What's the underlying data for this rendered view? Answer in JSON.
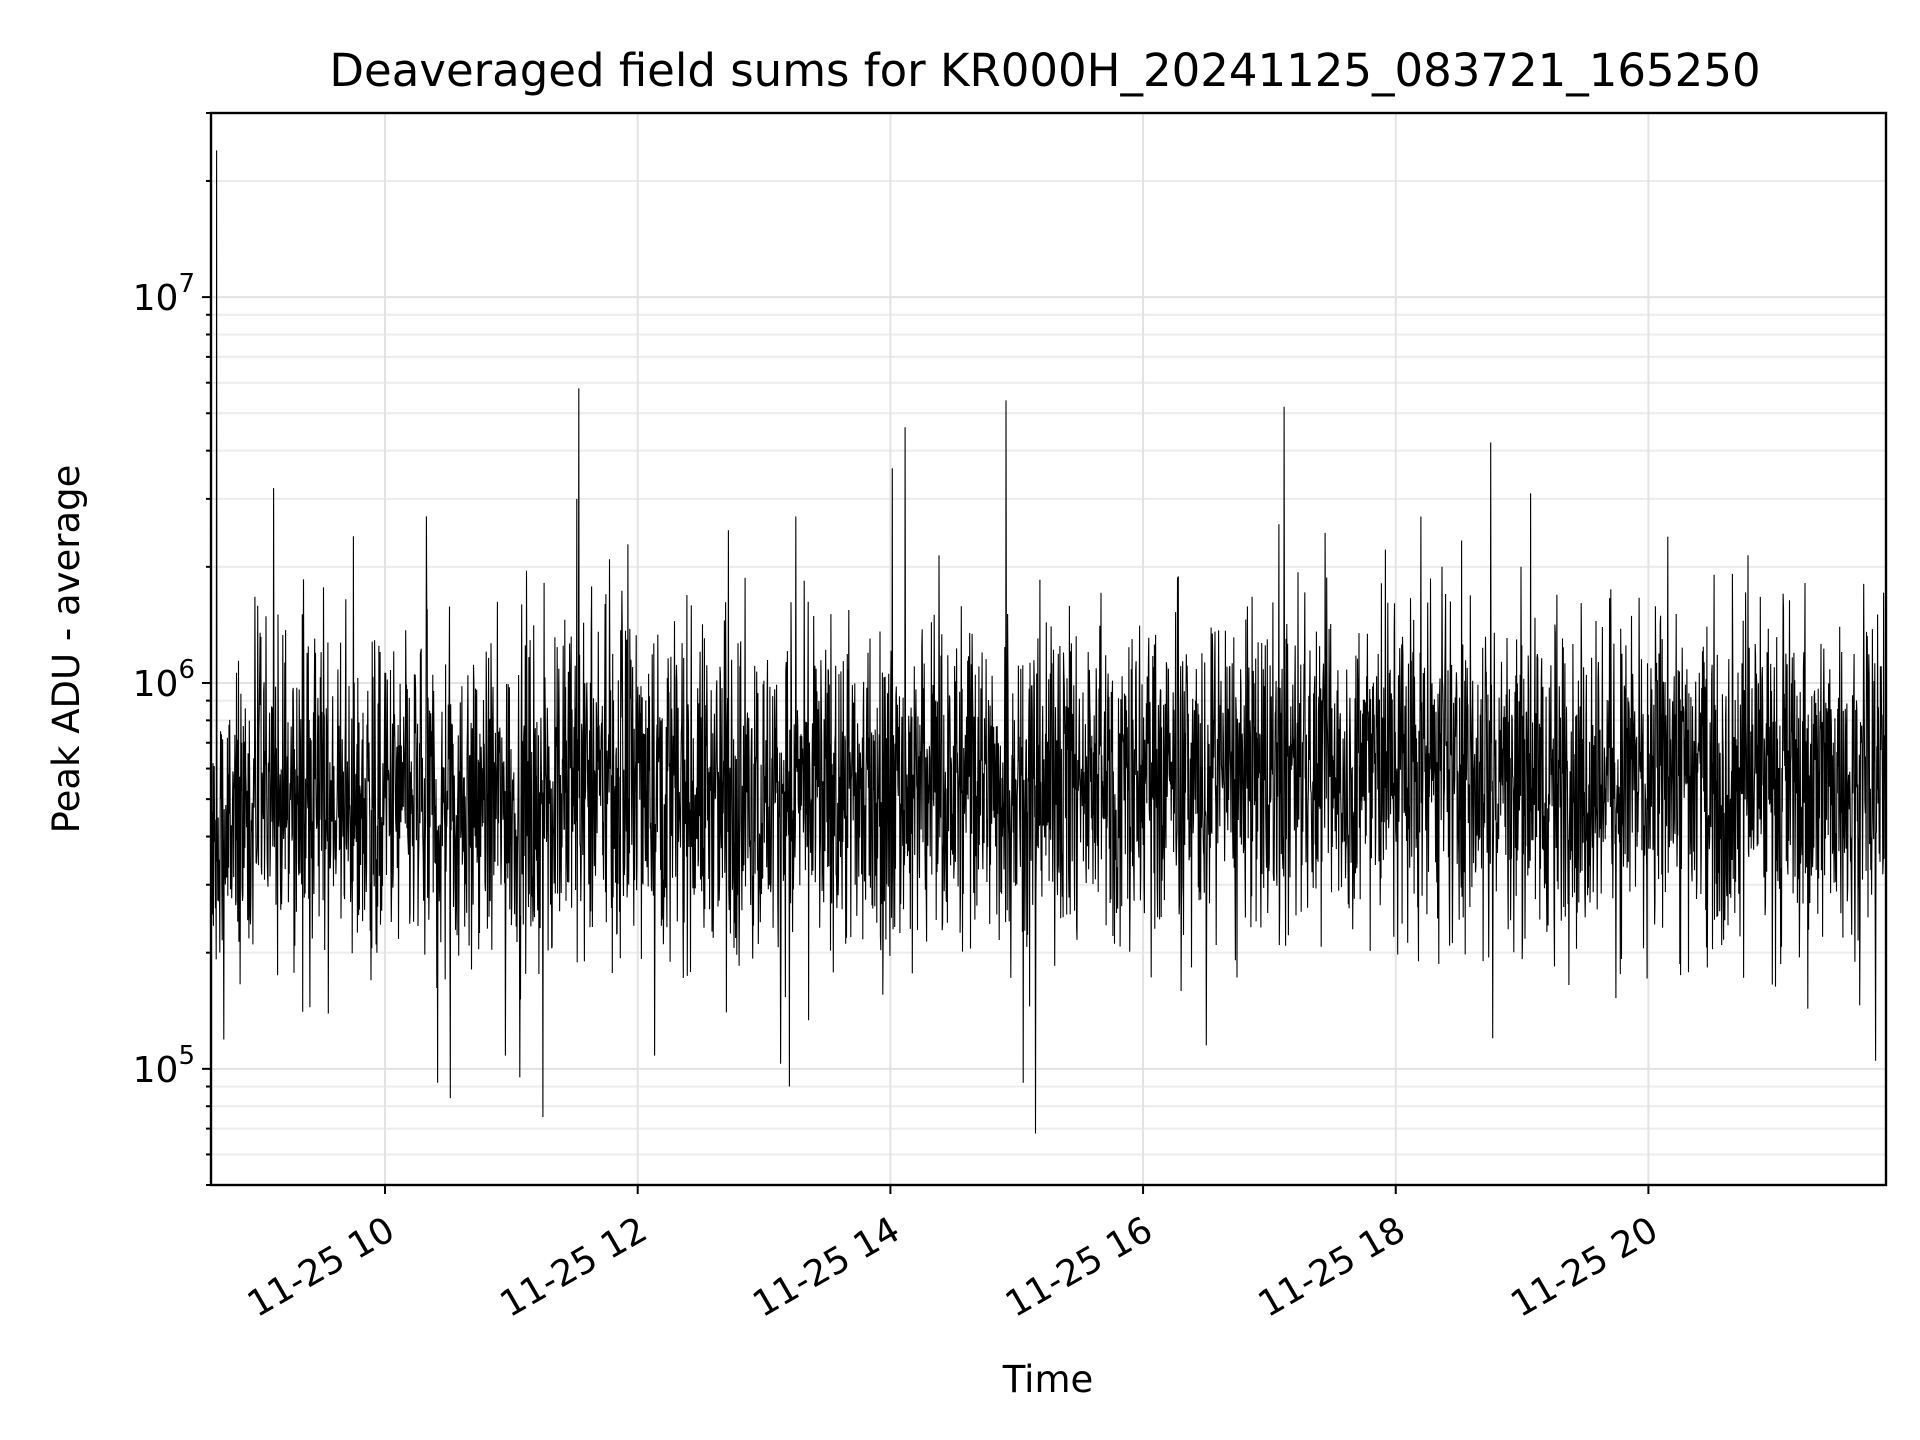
{
  "chart_data": {
    "type": "line",
    "title": "Deaveraged field sums for KR000H_20241125_083721_165250",
    "xlabel": "Time",
    "ylabel": "Peak ADU - average",
    "x_start": "2024-11-25 08:37:21",
    "x_end": "2024-11-25 21:52:50",
    "xlim": [
      "2024-11-25 08:37:21",
      "2024-11-25 21:52:50"
    ],
    "ylim": [
      50000,
      30000000
    ],
    "yscale": "log",
    "grid": true,
    "x_ticks": [
      {
        "time": "2024-11-25 10:00",
        "label": "11-25 10"
      },
      {
        "time": "2024-11-25 12:00",
        "label": "11-25 12"
      },
      {
        "time": "2024-11-25 14:00",
        "label": "11-25 14"
      },
      {
        "time": "2024-11-25 16:00",
        "label": "11-25 16"
      },
      {
        "time": "2024-11-25 18:00",
        "label": "11-25 18"
      },
      {
        "time": "2024-11-25 20:00",
        "label": "11-25 20"
      }
    ],
    "y_ticks": [
      {
        "value": 100000,
        "base": "10",
        "exp": "5"
      },
      {
        "value": 1000000,
        "base": "10",
        "exp": "6"
      },
      {
        "value": 10000000,
        "base": "10",
        "exp": "7"
      }
    ],
    "series": [
      {
        "color": "#000000",
        "baseline": [
          {
            "time": "2024-11-25 08:37",
            "value": 320000
          },
          {
            "time": "2024-11-25 09:00",
            "value": 500000
          },
          {
            "time": "2024-11-25 10:00",
            "value": 480000
          },
          {
            "time": "2024-11-25 11:00",
            "value": 490000
          },
          {
            "time": "2024-11-25 12:00",
            "value": 560000
          },
          {
            "time": "2024-11-25 13:00",
            "value": 500000
          },
          {
            "time": "2024-11-25 14:00",
            "value": 520000
          },
          {
            "time": "2024-11-25 15:00",
            "value": 560000
          },
          {
            "time": "2024-11-25 16:00",
            "value": 560000
          },
          {
            "time": "2024-11-25 17:00",
            "value": 560000
          },
          {
            "time": "2024-11-25 18:00",
            "value": 620000
          },
          {
            "time": "2024-11-25 19:00",
            "value": 560000
          },
          {
            "time": "2024-11-25 20:00",
            "value": 580000
          },
          {
            "time": "2024-11-25 21:00",
            "value": 580000
          },
          {
            "time": "2024-11-25 21:52",
            "value": 560000
          }
        ],
        "peaks": [
          {
            "time": "2024-11-25 08:40",
            "value": 24000000
          },
          {
            "time": "2024-11-25 09:07",
            "value": 3200000
          },
          {
            "time": "2024-11-25 09:45",
            "value": 2400000
          },
          {
            "time": "2024-11-25 11:32",
            "value": 5800000
          },
          {
            "time": "2024-11-25 11:31",
            "value": 3000000
          },
          {
            "time": "2024-11-25 13:15",
            "value": 2700000
          },
          {
            "time": "2024-11-25 14:01",
            "value": 3600000
          },
          {
            "time": "2024-11-25 14:07",
            "value": 4600000
          },
          {
            "time": "2024-11-25 14:55",
            "value": 5400000
          },
          {
            "time": "2024-11-25 17:07",
            "value": 5200000
          },
          {
            "time": "2024-11-25 18:12",
            "value": 2700000
          },
          {
            "time": "2024-11-25 18:22",
            "value": 2000000
          },
          {
            "time": "2024-11-25 18:45",
            "value": 4200000
          },
          {
            "time": "2024-11-25 19:04",
            "value": 3100000
          }
        ],
        "dips": [
          {
            "time": "2024-11-25 10:25",
            "value": 92000
          },
          {
            "time": "2024-11-25 10:31",
            "value": 84000
          },
          {
            "time": "2024-11-25 11:04",
            "value": 95000
          },
          {
            "time": "2024-11-25 11:15",
            "value": 75000
          },
          {
            "time": "2024-11-25 13:12",
            "value": 90000
          },
          {
            "time": "2024-11-25 15:03",
            "value": 92000
          },
          {
            "time": "2024-11-25 15:09",
            "value": 68000
          },
          {
            "time": "2024-11-25 16:30",
            "value": 115000
          },
          {
            "time": "2024-11-25 18:46",
            "value": 120000
          },
          {
            "time": "2024-11-25 21:48",
            "value": 105000
          }
        ]
      }
    ]
  }
}
